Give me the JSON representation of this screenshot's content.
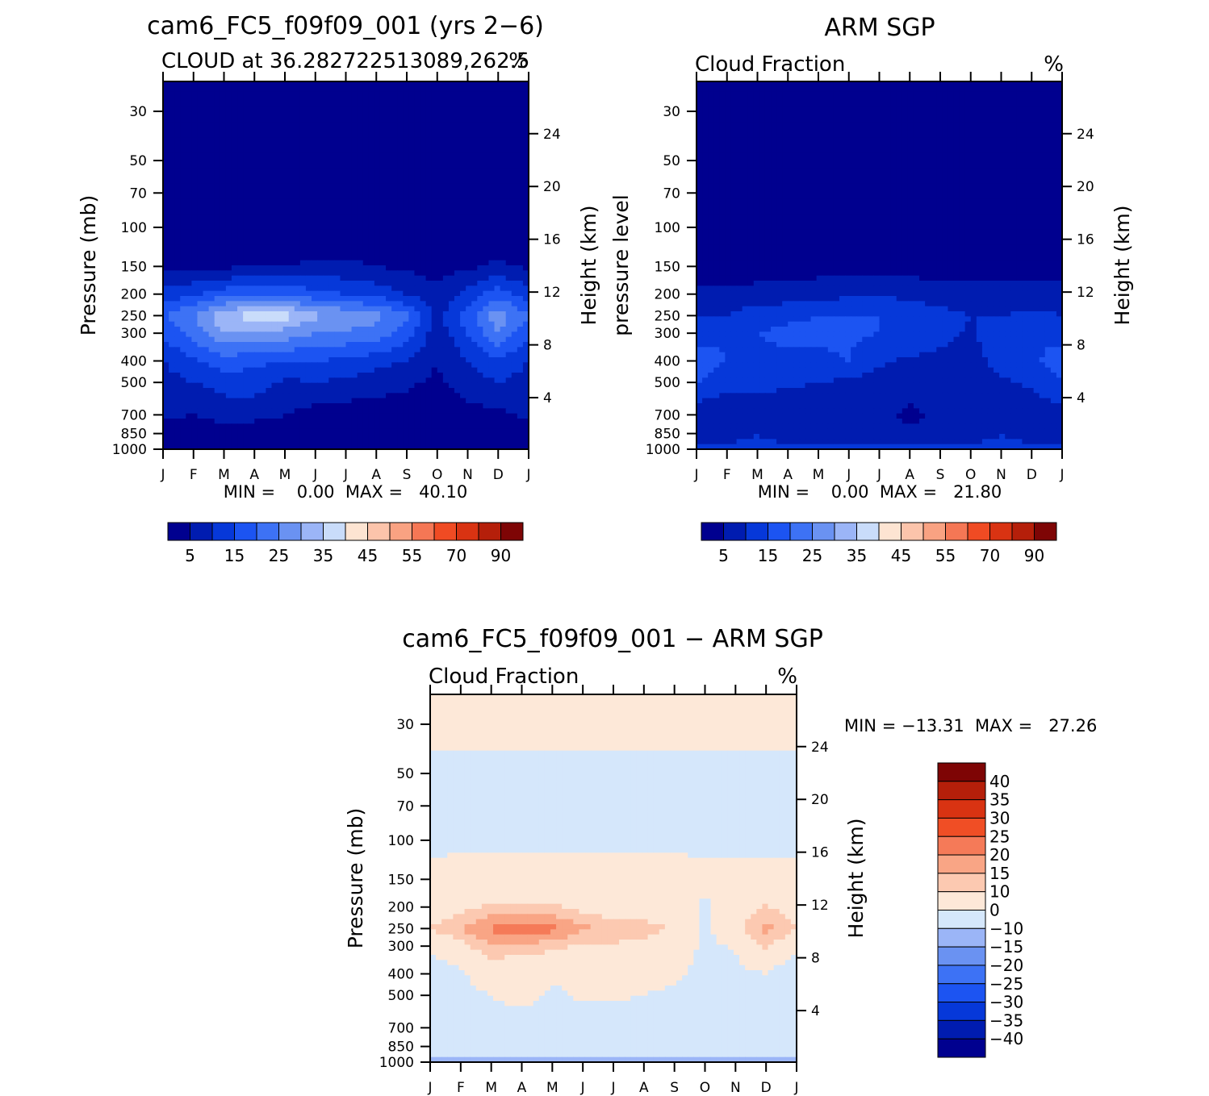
{
  "colors": {
    "cloud_levels": [
      "#00008f",
      "#001cb0",
      "#0638d9",
      "#1c54f2",
      "#3d72f5",
      "#6a92f2",
      "#9bb5f7",
      "#c9dcfa",
      "#fde4d2",
      "#fcc4ab",
      "#f9a282",
      "#f57755",
      "#f04b23",
      "#d93312",
      "#b51f0a",
      "#7e0505"
    ],
    "diff_levels": [
      "#00008f",
      "#001cb0",
      "#0638d9",
      "#1c54f2",
      "#3d72f5",
      "#6a92f2",
      "#9bb5f7",
      "#d5e7fb",
      "#fde8d8",
      "#fcc9b1",
      "#f9a585",
      "#f57a58",
      "#f04e25",
      "#d93312",
      "#b51f0a",
      "#7e0505"
    ]
  },
  "panels": [
    {
      "title": "cam6_FC5_f09f09_001 (yrs 2−6)",
      "subtitle_left": "CLOUD at 36.282722513089,262.5",
      "subtitle_right": "%",
      "ylabel_left": "Pressure (mb)",
      "ylabel_right": "Height (km)",
      "minmax": "MIN =    0.00  MAX =   40.10"
    },
    {
      "title": "ARM SGP",
      "subtitle_left": "Cloud Fraction",
      "subtitle_right": "%",
      "ylabel_left": "pressure level",
      "ylabel_right": "Height (km)",
      "minmax": "MIN =    0.00  MAX =   21.80"
    },
    {
      "title": "cam6_FC5_f09f09_001 − ARM SGP",
      "subtitle_left": "Cloud Fraction",
      "subtitle_right": "%",
      "ylabel_left": "Pressure (mb)",
      "ylabel_right": "Height (km)",
      "minmax": "MIN = −13.31  MAX =   27.26"
    }
  ],
  "colorbar_cloud_labels": [
    "5",
    "15",
    "25",
    "35",
    "45",
    "55",
    "70",
    "90"
  ],
  "colorbar_diff_labels": [
    "40",
    "35",
    "30",
    "25",
    "20",
    "15",
    "10",
    "0",
    "−10",
    "−15",
    "−20",
    "−25",
    "−30",
    "−35",
    "−40"
  ],
  "chart_data": [
    {
      "type": "heatmap",
      "title": "cam6_FC5_f09f09_001 (yrs 2−6)",
      "subtitle": "CLOUD at 36.282722513089,262.5",
      "units": "%",
      "xlabel": "",
      "ylabel": "Pressure (mb)",
      "ylabel_right": "Height (km)",
      "x_ticks": [
        "J",
        "F",
        "M",
        "A",
        "M",
        "J",
        "J",
        "A",
        "S",
        "O",
        "N",
        "D",
        "J"
      ],
      "y_ticks": [
        30,
        50,
        70,
        100,
        150,
        200,
        250,
        300,
        400,
        500,
        700,
        850,
        1000
      ],
      "y_right_ticks": [
        24,
        20,
        16,
        12,
        8,
        4
      ],
      "y_scale": "log",
      "levels": [
        5,
        10,
        15,
        20,
        25,
        30,
        35,
        40,
        45,
        50,
        55,
        60,
        70,
        80,
        90
      ],
      "min": 0.0,
      "max": 40.1,
      "x_months": [
        1,
        2,
        3,
        4,
        5,
        6,
        7,
        8,
        9,
        10,
        11,
        12,
        13
      ],
      "p_levels": [
        30,
        50,
        100,
        150,
        200,
        250,
        300,
        400,
        500,
        700,
        850,
        1000
      ],
      "values": [
        [
          0,
          0,
          0,
          0,
          0,
          0,
          0,
          0,
          0,
          0,
          0,
          0,
          0
        ],
        [
          0,
          0,
          0,
          0,
          0,
          0,
          0,
          0,
          0,
          0,
          0,
          0,
          0
        ],
        [
          0,
          0,
          0,
          0,
          0,
          0,
          0,
          0,
          0,
          0,
          0,
          0,
          0
        ],
        [
          4,
          4,
          4,
          5,
          5,
          6,
          6,
          5,
          4,
          3,
          4,
          6,
          4
        ],
        [
          12,
          14,
          18,
          18,
          19,
          17,
          15,
          13,
          10,
          6,
          12,
          18,
          12
        ],
        [
          20,
          25,
          34,
          38,
          37,
          31,
          29,
          27,
          21,
          8,
          18,
          28,
          20
        ],
        [
          16,
          22,
          30,
          30,
          28,
          25,
          24,
          23,
          18,
          7,
          15,
          25,
          16
        ],
        [
          10,
          14,
          18,
          16,
          15,
          15,
          14,
          12,
          10,
          5,
          10,
          14,
          10
        ],
        [
          8,
          10,
          12,
          13,
          9,
          10,
          9,
          7,
          6,
          4,
          8,
          10,
          8
        ],
        [
          6,
          5,
          7,
          6,
          5,
          3,
          2,
          3,
          2,
          1,
          3,
          4,
          6
        ],
        [
          3,
          2,
          3,
          3,
          3,
          2,
          1,
          1,
          1,
          1,
          2,
          2,
          3
        ],
        [
          0,
          0,
          0,
          0,
          0,
          0,
          0,
          0,
          0,
          0,
          0,
          0,
          0
        ]
      ]
    },
    {
      "type": "heatmap",
      "title": "ARM SGP",
      "subtitle": "Cloud Fraction",
      "units": "%",
      "xlabel": "",
      "ylabel": "pressure level",
      "ylabel_right": "Height (km)",
      "x_ticks": [
        "J",
        "F",
        "M",
        "A",
        "M",
        "J",
        "J",
        "A",
        "S",
        "O",
        "N",
        "D",
        "J"
      ],
      "y_ticks": [
        30,
        50,
        70,
        100,
        150,
        200,
        250,
        300,
        400,
        500,
        700,
        850,
        1000
      ],
      "y_right_ticks": [
        24,
        20,
        16,
        12,
        8,
        4
      ],
      "y_scale": "log",
      "levels": [
        5,
        10,
        15,
        20,
        25,
        30,
        35,
        40,
        45,
        50,
        55,
        60,
        70,
        80,
        90
      ],
      "min": 0.0,
      "max": 21.8,
      "x_months": [
        1,
        2,
        3,
        4,
        5,
        6,
        7,
        8,
        9,
        10,
        11,
        12,
        13
      ],
      "p_levels": [
        30,
        50,
        100,
        150,
        200,
        250,
        300,
        400,
        500,
        700,
        850,
        1000
      ],
      "values": [
        [
          0,
          0,
          0,
          0,
          0,
          0,
          0,
          0,
          0,
          0,
          0,
          0,
          0
        ],
        [
          0,
          0,
          0,
          0,
          0,
          0,
          0,
          0,
          0,
          0,
          0,
          0,
          0
        ],
        [
          0,
          0,
          0,
          0,
          0,
          0,
          0,
          0,
          0,
          0,
          0,
          0,
          0
        ],
        [
          2,
          2,
          2,
          2,
          3,
          3,
          3,
          3,
          3,
          3,
          3,
          3,
          2
        ],
        [
          7,
          6,
          7,
          7,
          8,
          9,
          10,
          8,
          7,
          7,
          7,
          7,
          7
        ],
        [
          10,
          10,
          13,
          14,
          15,
          15,
          15,
          14,
          12,
          10,
          10,
          11,
          10
        ],
        [
          13,
          14,
          15,
          16,
          16,
          16,
          15,
          15,
          12,
          9,
          14,
          14,
          13
        ],
        [
          18,
          15,
          14,
          14,
          14,
          15,
          11,
          9,
          8,
          8,
          12,
          14,
          18
        ],
        [
          15,
          12,
          12,
          11,
          10,
          9,
          8,
          7,
          8,
          7,
          9,
          11,
          15
        ],
        [
          7,
          6,
          6,
          6,
          6,
          6,
          6,
          4,
          6,
          7,
          7,
          7,
          7
        ],
        [
          6,
          7,
          10,
          7,
          6,
          6,
          6,
          6,
          6,
          7,
          10,
          7,
          6
        ],
        [
          12,
          12,
          12,
          12,
          12,
          12,
          12,
          12,
          12,
          12,
          12,
          12,
          12
        ]
      ]
    },
    {
      "type": "heatmap",
      "title": "cam6_FC5_f09f09_001 − ARM SGP",
      "subtitle": "Cloud Fraction",
      "units": "%",
      "xlabel": "",
      "ylabel": "Pressure (mb)",
      "ylabel_right": "Height (km)",
      "x_ticks": [
        "J",
        "F",
        "M",
        "A",
        "M",
        "J",
        "J",
        "A",
        "S",
        "O",
        "N",
        "D",
        "J"
      ],
      "y_ticks": [
        30,
        50,
        70,
        100,
        150,
        200,
        250,
        300,
        400,
        500,
        700,
        850,
        1000
      ],
      "y_right_ticks": [
        24,
        20,
        16,
        12,
        8,
        4
      ],
      "y_scale": "log",
      "levels": [
        -40,
        -35,
        -30,
        -25,
        -20,
        -15,
        -10,
        0,
        10,
        15,
        20,
        25,
        30,
        35,
        40
      ],
      "min": -13.31,
      "max": 27.26,
      "x_months": [
        1,
        2,
        3,
        4,
        5,
        6,
        7,
        8,
        9,
        10,
        11,
        12,
        13
      ],
      "p_levels": [
        30,
        50,
        100,
        150,
        200,
        250,
        300,
        400,
        500,
        700,
        850,
        1000
      ],
      "values": [
        [
          1,
          1,
          1,
          1,
          1,
          1,
          1,
          1,
          1,
          1,
          1,
          1,
          1
        ],
        [
          -1,
          -1,
          -1,
          -1,
          -1,
          -1,
          -1,
          -1,
          -1,
          -1,
          -1,
          -1,
          -1
        ],
        [
          -1,
          -1,
          -1,
          -1,
          -1,
          -1,
          -1,
          -1,
          -1,
          -1,
          -1,
          -1,
          -1
        ],
        [
          1,
          2,
          2,
          2,
          2,
          2,
          2,
          2,
          2,
          1,
          1,
          1,
          1
        ],
        [
          5,
          8,
          11,
          11,
          11,
          8,
          5,
          5,
          3,
          -1,
          5,
          11,
          5
        ],
        [
          10,
          15,
          21,
          24,
          22,
          16,
          14,
          13,
          9,
          -2,
          8,
          17,
          10
        ],
        [
          3,
          8,
          15,
          14,
          12,
          9,
          9,
          8,
          6,
          -2,
          1,
          11,
          3
        ],
        [
          -8,
          -1,
          4,
          2,
          1,
          0,
          3,
          3,
          2,
          -3,
          -2,
          0,
          -8
        ],
        [
          -7,
          -2,
          0,
          2,
          -1,
          1,
          1,
          0,
          -2,
          -3,
          -1,
          -1,
          -7
        ],
        [
          -1,
          -2,
          -3,
          -3,
          -3,
          -4,
          -5,
          -3,
          -4,
          -6,
          -4,
          -3,
          -1
        ],
        [
          -3,
          -5,
          -7,
          -4,
          -3,
          -4,
          -5,
          -5,
          -5,
          -6,
          -8,
          -5,
          -3
        ],
        [
          -12,
          -12,
          -12,
          -12,
          -12,
          -12,
          -12,
          -12,
          -12,
          -12,
          -12,
          -12,
          -12
        ]
      ]
    }
  ]
}
